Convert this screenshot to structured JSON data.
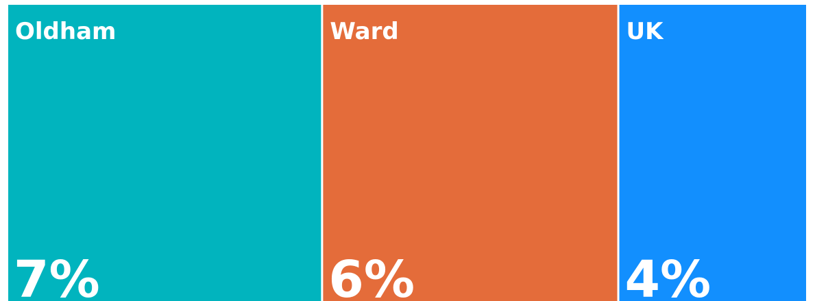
{
  "chart_data": {
    "type": "treemap",
    "categories": [
      "Oldham",
      "Ward",
      "UK"
    ],
    "values": [
      6.7,
      6.3,
      4.0
    ],
    "value_labels": [
      "7%",
      "6%",
      "4%"
    ],
    "colors": [
      "#01b4be",
      "#e46c3a",
      "#128ffe"
    ]
  }
}
